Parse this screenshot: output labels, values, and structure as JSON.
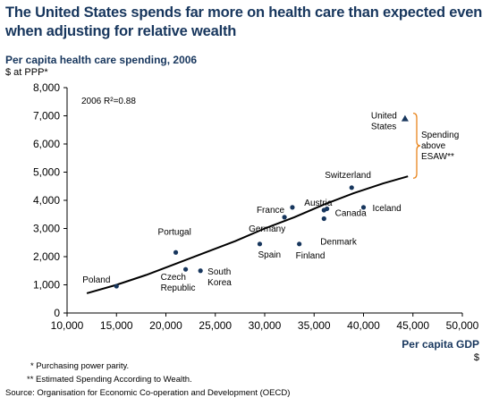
{
  "title": "The United States spends far more on health care than expected even when adjusting for relative wealth",
  "footnotes": [
    "* Purchasing power parity.",
    "** Estimated Spending According to Wealth.",
    "Source: Organisation for Economic Co-operation and Development (OECD)"
  ],
  "chart_data": {
    "type": "scatter",
    "title": "",
    "ylabel": "Per capita health care spending, 2006",
    "yunit": "$ at PPP*",
    "xlabel": "Per capita GDP",
    "xunit": "$",
    "xlim": [
      10000,
      50000
    ],
    "ylim": [
      0,
      8000
    ],
    "xticks": [
      10000,
      15000,
      20000,
      25000,
      30000,
      35000,
      40000,
      45000,
      50000
    ],
    "yticks": [
      0,
      1000,
      2000,
      3000,
      4000,
      5000,
      6000,
      7000,
      8000
    ],
    "xtick_labels": [
      "10,000",
      "15,000",
      "20,000",
      "25,000",
      "30,000",
      "35,000",
      "40,000",
      "45,000",
      "50,000"
    ],
    "ytick_labels": [
      "0",
      "1,000",
      "2,000",
      "3,000",
      "4,000",
      "5,000",
      "6,000",
      "7,000",
      "8,000"
    ],
    "grid": false,
    "annotation_r2": "2006 R²=0.88",
    "annotation_esaw": [
      "Spending",
      "above",
      "ESAW**"
    ],
    "points": [
      {
        "label": [
          "Poland"
        ],
        "x": 15000,
        "y": 950
      },
      {
        "label": [
          "Portugal"
        ],
        "x": 21000,
        "y": 2150
      },
      {
        "label": [
          "Czech",
          "Republic"
        ],
        "x": 22000,
        "y": 1550
      },
      {
        "label": [
          "South",
          "Korea"
        ],
        "x": 23500,
        "y": 1500
      },
      {
        "label": [
          "Spain"
        ],
        "x": 29500,
        "y": 2450
      },
      {
        "label": [
          "Germany"
        ],
        "x": 32000,
        "y": 3400
      },
      {
        "label": [
          "France"
        ],
        "x": 32800,
        "y": 3750
      },
      {
        "label": [
          "Finland"
        ],
        "x": 33500,
        "y": 2450
      },
      {
        "label": [
          "Austria"
        ],
        "x": 36000,
        "y": 3650
      },
      {
        "label": [
          "Denmark"
        ],
        "x": 36000,
        "y": 3350
      },
      {
        "label": [
          "Canada"
        ],
        "x": 36300,
        "y": 3700
      },
      {
        "label": [
          "Switzerland"
        ],
        "x": 38800,
        "y": 4450
      },
      {
        "label": [
          "Iceland"
        ],
        "x": 40000,
        "y": 3750
      },
      {
        "label": [
          "United",
          "States"
        ],
        "x": 44200,
        "y": 6900
      }
    ],
    "trend_line": {
      "x": [
        12000,
        15000,
        18000,
        21000,
        24000,
        27000,
        30000,
        33000,
        36000,
        39000,
        42000,
        44500
      ],
      "y": [
        700,
        1000,
        1350,
        1750,
        2150,
        2550,
        3000,
        3400,
        3850,
        4250,
        4600,
        4850
      ]
    },
    "colors": {
      "point": "#17365d",
      "us_marker": "#17365d",
      "line": "#000000",
      "brace": "#e8841c",
      "title": "#17365d"
    }
  }
}
